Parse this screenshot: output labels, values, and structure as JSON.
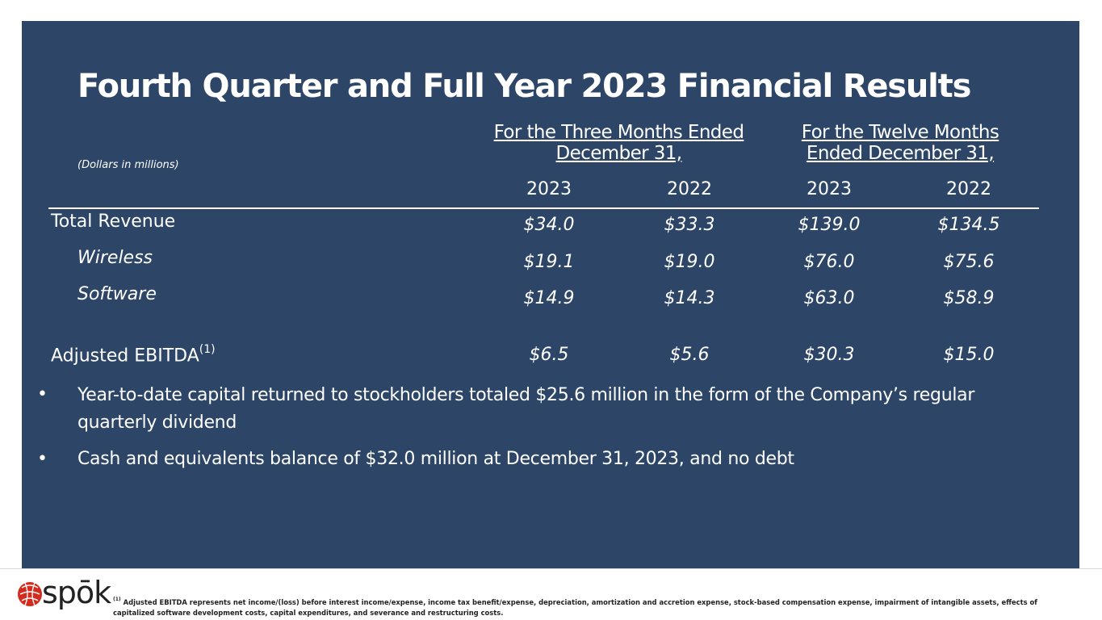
{
  "title": "Fourth Quarter and Full Year 2023 Financial Results",
  "units_note": "(Dollars in millions)",
  "column_groups": [
    {
      "line1": "For the Three Months Ended",
      "line2": "December 31,"
    },
    {
      "line1": "For the Twelve Months",
      "line2": "Ended December 31,"
    }
  ],
  "years": [
    "2023",
    "2022",
    "2023",
    "2022"
  ],
  "rows": [
    {
      "label": "Total Revenue",
      "values": [
        "$34.0",
        "$33.3",
        "$139.0",
        "$134.5"
      ]
    },
    {
      "label": "Wireless",
      "values": [
        "$19.1",
        "$19.0",
        "$76.0",
        "$75.6"
      ]
    },
    {
      "label": "Software",
      "values": [
        "$14.9",
        "$14.3",
        "$63.0",
        "$58.9"
      ]
    },
    {
      "label": "Adjusted EBITDA",
      "label_sup": "(1)",
      "values": [
        "$6.5",
        "$5.6",
        "$30.3",
        "$15.0"
      ]
    }
  ],
  "bullets": [
    "Year-to-date capital returned to stockholders totaled $25.6 million in the form of the Company’s regular quarterly dividend",
    "Cash and equivalents balance of $32.0 million at December 31, 2023, and no debt"
  ],
  "bullet_symbol": "•",
  "logo_text": "spōk",
  "footnote": {
    "marker": "(1)",
    "text": "Adjusted EBITDA represents net income/(loss) before interest income/expense, income tax benefit/expense, depreciation, amortization and accretion expense, stock-based compensation expense, impairment of intangible assets, effects of capitalized software development costs, capital expenditures, and severance and restructuring costs."
  },
  "colors": {
    "panel": "#2d4566",
    "text": "#ffffff",
    "logo_red": "#d52b1e"
  }
}
